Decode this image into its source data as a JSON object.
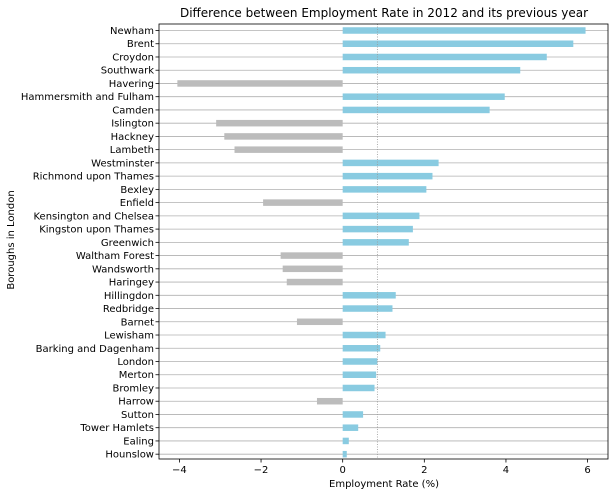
{
  "chart_data": {
    "type": "bar",
    "orientation": "horizontal",
    "title": "Difference between Employment Rate in 2012 and its previous year",
    "xlabel": "Employment Rate (%)",
    "ylabel": "Boroughs in London",
    "xlim": [
      -4.5,
      6.5
    ],
    "xticks": [
      -4,
      -2,
      0,
      2,
      4,
      6
    ],
    "xtick_labels": [
      "−4",
      "−2",
      "0",
      "2",
      "4",
      "6"
    ],
    "grid": "horizontal gridlines at each category",
    "reference_line": {
      "x": 0.85,
      "style": "dotted",
      "color": "#999999"
    },
    "colors": {
      "positive": "#89cbe1",
      "negative": "#bcbcbc",
      "grid": "#b0b0b0"
    },
    "categories": [
      "Newham",
      "Brent",
      "Croydon",
      "Southwark",
      "Havering",
      "Hammersmith and Fulham",
      "Camden",
      "Islington",
      "Hackney",
      "Lambeth",
      "Westminster",
      "Richmond upon Thames",
      "Bexley",
      "Enfield",
      "Kensington and Chelsea",
      "Kingston upon Thames",
      "Greenwich",
      "Waltham Forest",
      "Wandsworth",
      "Haringey",
      "Hillingdon",
      "Redbridge",
      "Barnet",
      "Lewisham",
      "Barking and Dagenham",
      "London",
      "Merton",
      "Bromley",
      "Harrow",
      "Sutton",
      "Tower Hamlets",
      "Ealing",
      "Hounslow"
    ],
    "values": [
      5.95,
      5.65,
      5.0,
      4.35,
      -4.05,
      3.97,
      3.6,
      -3.1,
      -2.9,
      -2.65,
      2.35,
      2.2,
      2.05,
      -1.95,
      1.88,
      1.72,
      1.62,
      -1.52,
      -1.47,
      -1.37,
      1.3,
      1.22,
      -1.12,
      1.05,
      0.92,
      0.85,
      0.82,
      0.78,
      -0.63,
      0.5,
      0.38,
      0.15,
      0.1
    ]
  }
}
